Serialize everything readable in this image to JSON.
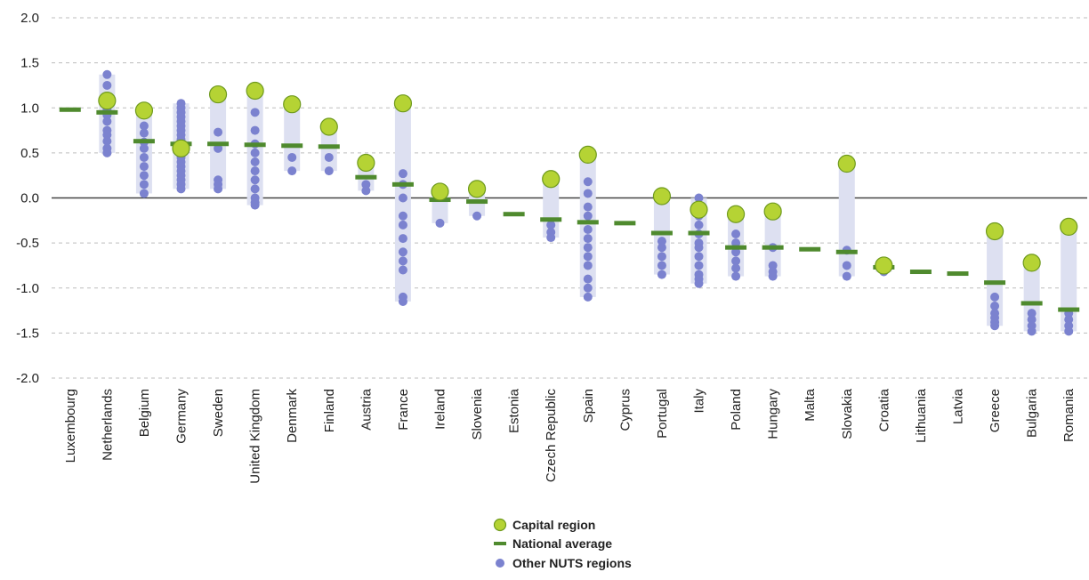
{
  "chart_data": {
    "type": "scatter",
    "ylim": [
      -2.0,
      2.0
    ],
    "yticks": [
      "2.0",
      "1.5",
      "1.0",
      "0.5",
      "0.0",
      "-0.5",
      "-1.0",
      "-1.5",
      "-2.0"
    ],
    "ytick_values": [
      2.0,
      1.5,
      1.0,
      0.5,
      0.0,
      -0.5,
      -1.0,
      -1.5,
      -2.0
    ],
    "grid": "horizontal-dashed",
    "legend_position": "bottom-center",
    "legend": {
      "capital": "Capital region",
      "national": "National average",
      "other": "Other NUTS regions"
    },
    "colors": {
      "capital_fill": "#b5d334",
      "capital_stroke": "#6f9a1e",
      "national": "#4f8a2e",
      "other": "#7b82cf",
      "range": "#dde0f1",
      "grid": "#bdbdbd",
      "axis": "#444444"
    },
    "categories": [
      "Luxembourg",
      "Netherlands",
      "Belgium",
      "Germany",
      "Sweden",
      "United Kingdom",
      "Denmark",
      "Finland",
      "Austria",
      "France",
      "Ireland",
      "Slovenia",
      "Estonia",
      "Czech Republic",
      "Spain",
      "Cyprus",
      "Portugal",
      "Italy",
      "Poland",
      "Hungary",
      "Malta",
      "Slovakia",
      "Croatia",
      "Lithuania",
      "Latvia",
      "Greece",
      "Bulgaria",
      "Romania"
    ],
    "capital": [
      null,
      1.08,
      0.97,
      0.55,
      1.15,
      1.19,
      1.04,
      0.79,
      0.39,
      1.05,
      0.07,
      0.1,
      null,
      0.21,
      0.48,
      null,
      0.02,
      -0.13,
      -0.18,
      -0.15,
      null,
      0.38,
      -0.75,
      null,
      null,
      -0.37,
      -0.72,
      -0.32
    ],
    "national_average": [
      0.98,
      0.95,
      0.63,
      0.6,
      0.6,
      0.59,
      0.58,
      0.57,
      0.23,
      0.15,
      -0.02,
      -0.04,
      -0.18,
      -0.24,
      -0.27,
      -0.28,
      -0.39,
      -0.39,
      -0.55,
      -0.55,
      -0.57,
      -0.6,
      -0.77,
      -0.82,
      -0.84,
      -0.94,
      -1.17,
      -1.24
    ],
    "other_regions": [
      [],
      [
        1.37,
        1.25,
        0.98,
        0.92,
        0.85,
        0.75,
        0.7,
        0.63,
        0.55,
        0.5
      ],
      [
        0.8,
        0.72,
        0.62,
        0.55,
        0.45,
        0.35,
        0.25,
        0.15,
        0.05
      ],
      [
        1.05,
        1.0,
        0.95,
        0.9,
        0.85,
        0.8,
        0.75,
        0.7,
        0.65,
        0.6,
        0.55,
        0.5,
        0.45,
        0.4,
        0.35,
        0.3,
        0.25,
        0.2,
        0.15,
        0.1
      ],
      [
        0.73,
        0.55,
        0.2,
        0.15,
        0.1
      ],
      [
        1.15,
        0.95,
        0.75,
        0.6,
        0.5,
        0.4,
        0.3,
        0.2,
        0.1,
        0.0,
        -0.05,
        -0.08
      ],
      [
        0.45,
        0.3
      ],
      [
        0.45,
        0.3
      ],
      [
        0.15,
        0.08
      ],
      [
        0.27,
        0.15,
        0.0,
        -0.2,
        -0.3,
        -0.45,
        -0.6,
        -0.7,
        -0.8,
        -1.1,
        -1.15
      ],
      [
        -0.28
      ],
      [
        -0.2
      ],
      [],
      [
        -0.3,
        -0.38,
        -0.44
      ],
      [
        0.18,
        0.05,
        -0.1,
        -0.2,
        -0.35,
        -0.45,
        -0.55,
        -0.65,
        -0.75,
        -0.9,
        -1.0,
        -1.1
      ],
      [],
      [
        -0.48,
        -0.55,
        -0.65,
        -0.75,
        -0.85
      ],
      [
        0.0,
        -0.1,
        -0.2,
        -0.3,
        -0.4,
        -0.5,
        -0.55,
        -0.65,
        -0.75,
        -0.85,
        -0.9,
        -0.95
      ],
      [
        -0.4,
        -0.5,
        -0.6,
        -0.7,
        -0.78,
        -0.87
      ],
      [
        -0.55,
        -0.75,
        -0.82,
        -0.87
      ],
      [],
      [
        -0.58,
        -0.75,
        -0.87
      ],
      [
        -0.82
      ],
      [],
      [],
      [
        -1.1,
        -1.2,
        -1.28,
        -1.33,
        -1.38,
        -1.42
      ],
      [
        -1.28,
        -1.35,
        -1.42,
        -1.48
      ],
      [
        -1.28,
        -1.35,
        -1.42,
        -1.48
      ]
    ]
  }
}
